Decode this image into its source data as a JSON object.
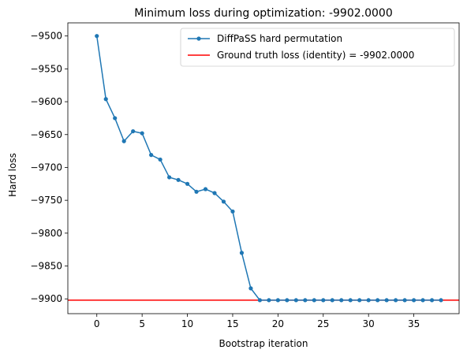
{
  "chart_data": {
    "type": "line",
    "title": "Minimum loss during optimization: -9902.0000",
    "xlabel": "Bootstrap iteration",
    "ylabel": "Hard loss",
    "xlim": [
      -3.2,
      40.0
    ],
    "ylim": [
      -9922.5,
      -9480.0
    ],
    "xticks": [
      0,
      5,
      10,
      15,
      20,
      25,
      30,
      35
    ],
    "yticks": [
      -9500,
      -9550,
      -9600,
      -9650,
      -9700,
      -9750,
      -9800,
      -9850,
      -9900
    ],
    "grid": false,
    "legend_position": "upper right",
    "series": [
      {
        "name": "DiffPaSS hard permutation",
        "color": "#1f77b4",
        "marker": "circle",
        "x": [
          0,
          1,
          2,
          3,
          4,
          5,
          6,
          7,
          8,
          9,
          10,
          11,
          12,
          13,
          14,
          15,
          16,
          17,
          18,
          19,
          20,
          21,
          22,
          23,
          24,
          25,
          26,
          27,
          28,
          29,
          30,
          31,
          32,
          33,
          34,
          35,
          36,
          37,
          38
        ],
        "y": [
          -9500,
          -9596,
          -9625,
          -9660,
          -9645,
          -9648,
          -9681,
          -9688,
          -9715,
          -9719,
          -9725,
          -9737,
          -9733,
          -9739,
          -9752,
          -9767,
          -9830,
          -9884,
          -9902,
          -9902,
          -9902,
          -9902,
          -9902,
          -9902,
          -9902,
          -9902,
          -9902,
          -9902,
          -9902,
          -9902,
          -9902,
          -9902,
          -9902,
          -9902,
          -9902,
          -9902,
          -9902,
          -9902,
          -9902
        ]
      }
    ],
    "reference_line": {
      "name": "Ground truth loss (identity) = -9902.0000",
      "orientation": "horizontal",
      "y": -9902,
      "color": "#ff0000"
    }
  }
}
